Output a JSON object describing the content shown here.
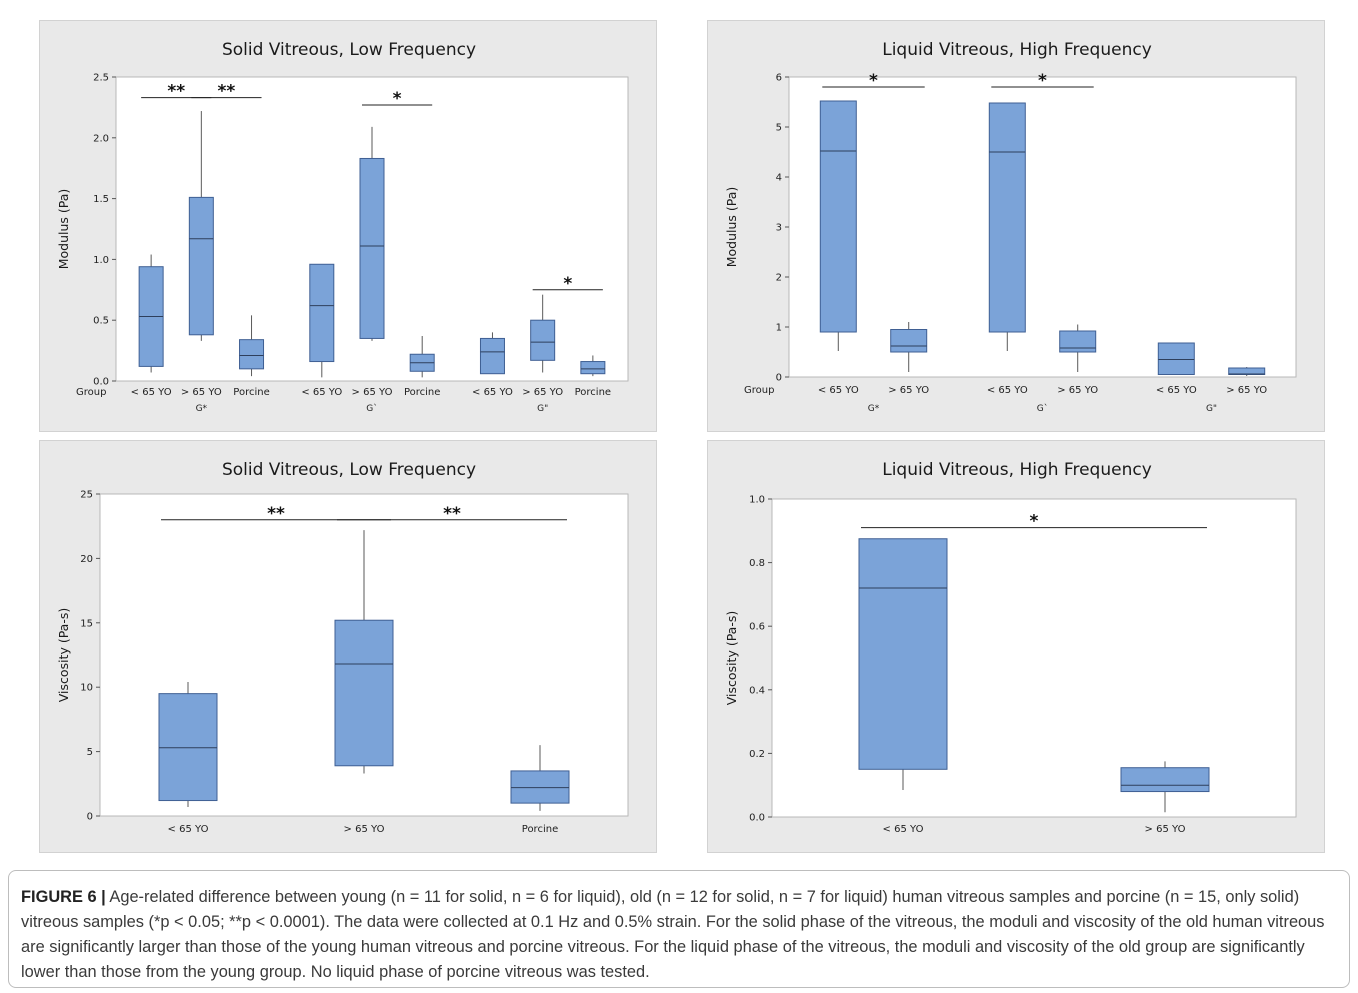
{
  "chart_data": [
    {
      "type": "boxplot",
      "title": "Solid Vitreous, Low Frequency",
      "ylabel": "Modulus (Pa)",
      "row_label": "Group",
      "ylim": [
        0,
        2.5
      ],
      "yticks": [
        "0.0",
        "0.5",
        "1.0",
        "1.5",
        "2.0",
        "2.5"
      ],
      "groups": [
        {
          "label": "G*",
          "categories": [
            "< 65 YO",
            "> 65 YO",
            "Porcine"
          ]
        },
        {
          "label": "G`",
          "categories": [
            "< 65 YO",
            "> 65 YO",
            "Porcine"
          ]
        },
        {
          "label": "G\"",
          "categories": [
            "< 65 YO",
            "> 65 YO",
            "Porcine"
          ]
        }
      ],
      "boxes": [
        {
          "min": 0.07,
          "q1": 0.12,
          "median": 0.53,
          "q3": 0.94,
          "max": 1.04
        },
        {
          "min": 0.33,
          "q1": 0.38,
          "median": 1.17,
          "q3": 1.51,
          "max": 2.22
        },
        {
          "min": 0.04,
          "q1": 0.1,
          "median": 0.21,
          "q3": 0.34,
          "max": 0.54
        },
        {
          "min": 0.03,
          "q1": 0.16,
          "median": 0.62,
          "q3": 0.96,
          "max": 0.96
        },
        {
          "min": 0.33,
          "q1": 0.35,
          "median": 1.11,
          "q3": 1.83,
          "max": 2.09
        },
        {
          "min": 0.03,
          "q1": 0.08,
          "median": 0.15,
          "q3": 0.22,
          "max": 0.37
        },
        {
          "min": 0.06,
          "q1": 0.06,
          "median": 0.24,
          "q3": 0.35,
          "max": 0.4
        },
        {
          "min": 0.07,
          "q1": 0.17,
          "median": 0.32,
          "q3": 0.5,
          "max": 0.71
        },
        {
          "min": 0.04,
          "q1": 0.06,
          "median": 0.1,
          "q3": 0.16,
          "max": 0.21
        }
      ],
      "significance": [
        {
          "from": 0,
          "to": 1,
          "y": 2.33,
          "label": "**"
        },
        {
          "from": 1,
          "to": 2,
          "y": 2.33,
          "label": "**"
        },
        {
          "from": 4,
          "to": 5,
          "y": 2.27,
          "label": "*"
        },
        {
          "from": 7,
          "to": 8,
          "y": 0.75,
          "label": "*"
        }
      ]
    },
    {
      "type": "boxplot",
      "title": "Liquid Vitreous, High Frequency",
      "ylabel": "Modulus (Pa)",
      "row_label": "Group",
      "ylim": [
        0,
        6
      ],
      "yticks": [
        "0",
        "1",
        "2",
        "3",
        "4",
        "5",
        "6"
      ],
      "groups": [
        {
          "label": "G*",
          "categories": [
            "< 65 YO",
            "> 65 YO"
          ]
        },
        {
          "label": "G`",
          "categories": [
            "< 65 YO",
            "> 65 YO"
          ]
        },
        {
          "label": "G\"",
          "categories": [
            "< 65 YO",
            "> 65 YO"
          ]
        }
      ],
      "boxes": [
        {
          "min": 0.52,
          "q1": 0.9,
          "median": 4.52,
          "q3": 5.52,
          "max": 5.52
        },
        {
          "min": 0.1,
          "q1": 0.5,
          "median": 0.62,
          "q3": 0.95,
          "max": 1.1
        },
        {
          "min": 0.52,
          "q1": 0.9,
          "median": 4.5,
          "q3": 5.48,
          "max": 5.48
        },
        {
          "min": 0.1,
          "q1": 0.5,
          "median": 0.58,
          "q3": 0.92,
          "max": 1.05
        },
        {
          "min": 0.05,
          "q1": 0.05,
          "median": 0.35,
          "q3": 0.68,
          "max": 0.68
        },
        {
          "min": 0.02,
          "q1": 0.05,
          "median": 0.06,
          "q3": 0.18,
          "max": 0.2
        }
      ],
      "significance": [
        {
          "from": 0,
          "to": 1,
          "y": 5.8,
          "label": "*"
        },
        {
          "from": 2,
          "to": 3,
          "y": 5.8,
          "label": "*"
        }
      ]
    },
    {
      "type": "boxplot",
      "title": "Solid Vitreous, Low Frequency",
      "ylabel": "Viscosity (Pa-s)",
      "ylim": [
        0,
        25
      ],
      "yticks": [
        "0",
        "5",
        "10",
        "15",
        "20",
        "25"
      ],
      "groups": [
        {
          "label": "",
          "categories": [
            "< 65 YO",
            "> 65 YO",
            "Porcine"
          ]
        }
      ],
      "boxes": [
        {
          "min": 0.7,
          "q1": 1.2,
          "median": 5.3,
          "q3": 9.5,
          "max": 10.4
        },
        {
          "min": 3.3,
          "q1": 3.9,
          "median": 11.8,
          "q3": 15.2,
          "max": 22.2
        },
        {
          "min": 0.4,
          "q1": 1.0,
          "median": 2.2,
          "q3": 3.5,
          "max": 5.5
        }
      ],
      "significance": [
        {
          "from": 0,
          "to": 1,
          "y": 23.0,
          "label": "**"
        },
        {
          "from": 1,
          "to": 2,
          "y": 23.0,
          "label": "**"
        }
      ]
    },
    {
      "type": "boxplot",
      "title": "Liquid Vitreous, High Frequency",
      "ylabel": "Viscosity (Pa-s)",
      "ylim": [
        0,
        1.0
      ],
      "yticks": [
        "0.0",
        "0.2",
        "0.4",
        "0.6",
        "0.8",
        "1.0"
      ],
      "groups": [
        {
          "label": "",
          "categories": [
            "< 65 YO",
            "> 65 YO"
          ]
        }
      ],
      "boxes": [
        {
          "min": 0.085,
          "q1": 0.15,
          "median": 0.72,
          "q3": 0.875,
          "max": 0.875
        },
        {
          "min": 0.015,
          "q1": 0.08,
          "median": 0.1,
          "q3": 0.155,
          "max": 0.175
        }
      ],
      "significance": [
        {
          "from": 0,
          "to": 1,
          "y": 0.91,
          "label": "*"
        }
      ]
    }
  ],
  "caption": {
    "label": "FIGURE 6 |",
    "text": "Age-related difference between young (n = 11 for solid, n = 6 for liquid), old (n = 12 for solid, n = 7 for liquid) human vitreous samples and porcine (n = 15, only solid) vitreous samples (*p < 0.05; **p < 0.0001). The data were collected at 0.1 Hz and 0.5% strain. For the solid phase of the vitreous, the moduli and viscosity of the old human vitreous are significantly larger than those of the young human vitreous and porcine vitreous. For the liquid phase of the vitreous, the moduli and viscosity of the old group are significantly lower than those from the young group. No liquid phase of porcine vitreous was tested."
  },
  "colors": {
    "box_fill": "#7ba3d8",
    "box_stroke": "#3f5f93",
    "panel_bg": "#e9e9e9",
    "plot_bg": "#ffffff"
  }
}
